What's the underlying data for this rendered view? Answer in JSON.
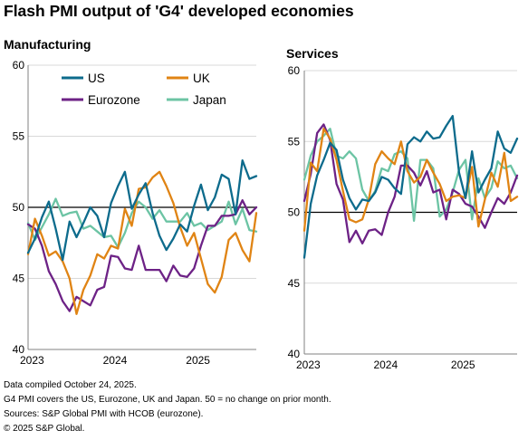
{
  "title": "Flash PMI output of 'G4' developed economies",
  "colors": {
    "US": "#0d6b8c",
    "UK": "#e08414",
    "Eurozone": "#6d2286",
    "Japan": "#6cc4a4",
    "baseline": "#000000",
    "gridline": "#d9d9d9"
  },
  "footer": [
    "Data compiled October 24, 2025.",
    "G4 PMI covers the US, Eurozone, UK and Japan. 50 = no change on prior month.",
    "Sources: S&P Global PMI with HCOB (eurozone).",
    "© 2025 S&P Global."
  ],
  "chart_data": [
    {
      "type": "line",
      "title": "Manufacturing",
      "x": [
        "2023-01",
        "2023-02",
        "2023-03",
        "2023-04",
        "2023-05",
        "2023-06",
        "2023-07",
        "2023-08",
        "2023-09",
        "2023-10",
        "2023-11",
        "2023-12",
        "2024-01",
        "2024-02",
        "2024-03",
        "2024-04",
        "2024-05",
        "2024-06",
        "2024-07",
        "2024-08",
        "2024-09",
        "2024-10",
        "2024-11",
        "2024-12",
        "2025-01",
        "2025-02",
        "2025-03",
        "2025-04",
        "2025-05",
        "2025-06",
        "2025-07",
        "2025-08",
        "2025-09",
        "2025-10"
      ],
      "x_tick_labels": [
        "2023",
        "2024",
        "2025"
      ],
      "ylim": [
        40,
        60
      ],
      "yticks": [
        40,
        45,
        50,
        55,
        60
      ],
      "grid": true,
      "legend": "top-left",
      "series": [
        {
          "name": "US",
          "values": [
            46.8,
            47.8,
            49.3,
            50.4,
            48.5,
            46.3,
            49.0,
            47.9,
            48.9,
            50.0,
            49.4,
            47.9,
            50.3,
            51.5,
            52.5,
            49.9,
            50.9,
            51.7,
            49.6,
            48.0,
            47.0,
            47.8,
            48.8,
            48.3,
            50.1,
            51.6,
            49.8,
            50.7,
            52.3,
            52.0,
            49.5,
            53.3,
            52.0,
            52.2
          ]
        },
        {
          "name": "UK",
          "values": [
            46.7,
            49.2,
            48.0,
            46.6,
            46.9,
            46.2,
            45.0,
            42.5,
            44.2,
            45.2,
            46.7,
            46.4,
            47.3,
            47.1,
            49.9,
            48.7,
            51.3,
            51.4,
            52.1,
            52.5,
            51.5,
            50.3,
            48.6,
            47.3,
            48.2,
            46.4,
            44.6,
            44.0,
            45.1,
            47.7,
            48.2,
            47.0,
            46.2,
            49.6
          ]
        },
        {
          "name": "Eurozone",
          "values": [
            48.8,
            48.5,
            47.3,
            45.5,
            44.6,
            43.4,
            42.7,
            43.7,
            43.4,
            43.1,
            44.2,
            44.4,
            46.6,
            46.5,
            45.7,
            45.6,
            47.3,
            45.6,
            45.6,
            45.6,
            44.8,
            45.9,
            45.2,
            45.1,
            45.7,
            47.3,
            48.7,
            48.7,
            49.4,
            49.4,
            49.5,
            50.5,
            49.5,
            50.0
          ]
        },
        {
          "name": "Japan",
          "values": [
            48.9,
            47.7,
            48.6,
            49.5,
            50.6,
            49.4,
            49.6,
            49.7,
            48.5,
            48.7,
            48.3,
            47.9,
            48.0,
            47.2,
            48.2,
            49.6,
            50.4,
            50.0,
            49.2,
            49.8,
            49.0,
            49.0,
            49.0,
            49.6,
            48.7,
            48.9,
            48.4,
            48.7,
            49.0,
            50.4,
            48.8,
            49.9,
            48.4,
            48.3
          ]
        }
      ]
    },
    {
      "type": "line",
      "title": "Services",
      "x": [
        "2023-01",
        "2023-02",
        "2023-03",
        "2023-04",
        "2023-05",
        "2023-06",
        "2023-07",
        "2023-08",
        "2023-09",
        "2023-10",
        "2023-11",
        "2023-12",
        "2024-01",
        "2024-02",
        "2024-03",
        "2024-04",
        "2024-05",
        "2024-06",
        "2024-07",
        "2024-08",
        "2024-09",
        "2024-10",
        "2024-11",
        "2024-12",
        "2025-01",
        "2025-02",
        "2025-03",
        "2025-04",
        "2025-05",
        "2025-06",
        "2025-07",
        "2025-08",
        "2025-09",
        "2025-10"
      ],
      "x_tick_labels": [
        "2023",
        "2024",
        "2025"
      ],
      "ylim": [
        40,
        60
      ],
      "yticks": [
        40,
        45,
        50,
        55,
        60
      ],
      "grid": true,
      "series": [
        {
          "name": "US",
          "values": [
            46.8,
            50.6,
            52.6,
            53.7,
            54.9,
            54.4,
            52.3,
            51.0,
            50.2,
            50.9,
            50.8,
            51.4,
            52.5,
            52.3,
            51.7,
            51.3,
            54.8,
            55.3,
            55.0,
            55.7,
            55.2,
            55.3,
            56.1,
            56.8,
            52.8,
            51.0,
            54.3,
            51.4,
            52.3,
            53.1,
            55.7,
            54.5,
            54.2,
            55.2
          ]
        },
        {
          "name": "UK",
          "values": [
            48.7,
            53.5,
            52.9,
            55.9,
            55.2,
            53.7,
            51.5,
            49.5,
            49.3,
            49.5,
            50.9,
            53.4,
            54.3,
            53.8,
            53.4,
            55.0,
            52.9,
            52.1,
            52.5,
            53.7,
            52.8,
            52.0,
            50.8,
            51.1,
            51.2,
            51.0,
            53.2,
            49.0,
            50.9,
            52.8,
            51.8,
            54.2,
            50.8,
            51.1
          ]
        },
        {
          "name": "Eurozone",
          "values": [
            50.8,
            52.7,
            55.6,
            56.2,
            55.1,
            52.0,
            50.9,
            47.9,
            48.7,
            47.8,
            48.7,
            48.8,
            48.4,
            50.0,
            51.1,
            53.3,
            53.3,
            52.8,
            51.9,
            52.9,
            51.4,
            51.6,
            49.5,
            51.6,
            51.3,
            50.6,
            50.4,
            49.7,
            48.9,
            50.0,
            51.0,
            50.6,
            51.4,
            52.6
          ]
        },
        {
          "name": "Japan",
          "values": [
            52.3,
            54.0,
            55.0,
            55.4,
            55.9,
            54.0,
            53.8,
            54.3,
            53.8,
            51.6,
            50.8,
            51.5,
            53.1,
            52.9,
            54.1,
            54.3,
            53.8,
            49.4,
            53.7,
            53.7,
            53.1,
            49.7,
            50.2,
            51.4,
            53.0,
            53.7,
            49.5,
            52.4,
            51.0,
            51.7,
            53.6,
            53.1,
            53.3,
            52.4
          ]
        }
      ]
    }
  ]
}
